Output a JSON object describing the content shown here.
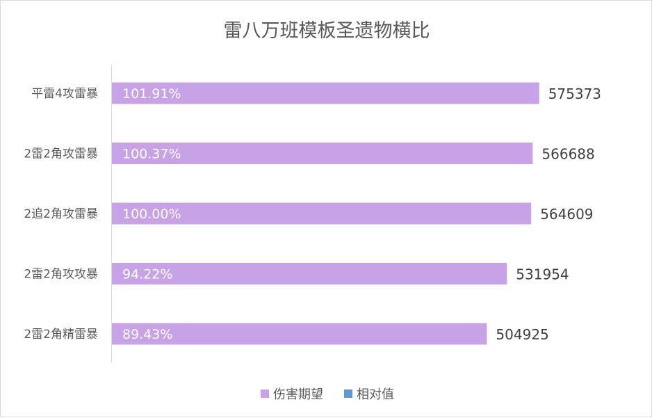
{
  "chart_data": {
    "type": "bar",
    "orientation": "horizontal",
    "title": "雷八万班模板圣遗物横比",
    "categories": [
      "平雷4攻雷暴",
      "2雷2角攻雷暴",
      "2追2角攻雷暴",
      "2雷2角攻攻暴",
      "2雷2角精雷暴"
    ],
    "series": [
      {
        "name": "伤害期望",
        "values": [
          575373,
          566688,
          564609,
          531954,
          504925
        ],
        "color": "#c8a2e6"
      },
      {
        "name": "相对值",
        "values": [
          "101.91%",
          "100.37%",
          "100.00%",
          "94.22%",
          "89.43%"
        ],
        "color": "#5b9bd5"
      }
    ],
    "xlim": [
      0,
      600000
    ],
    "grid": false,
    "legend_position": "bottom"
  }
}
